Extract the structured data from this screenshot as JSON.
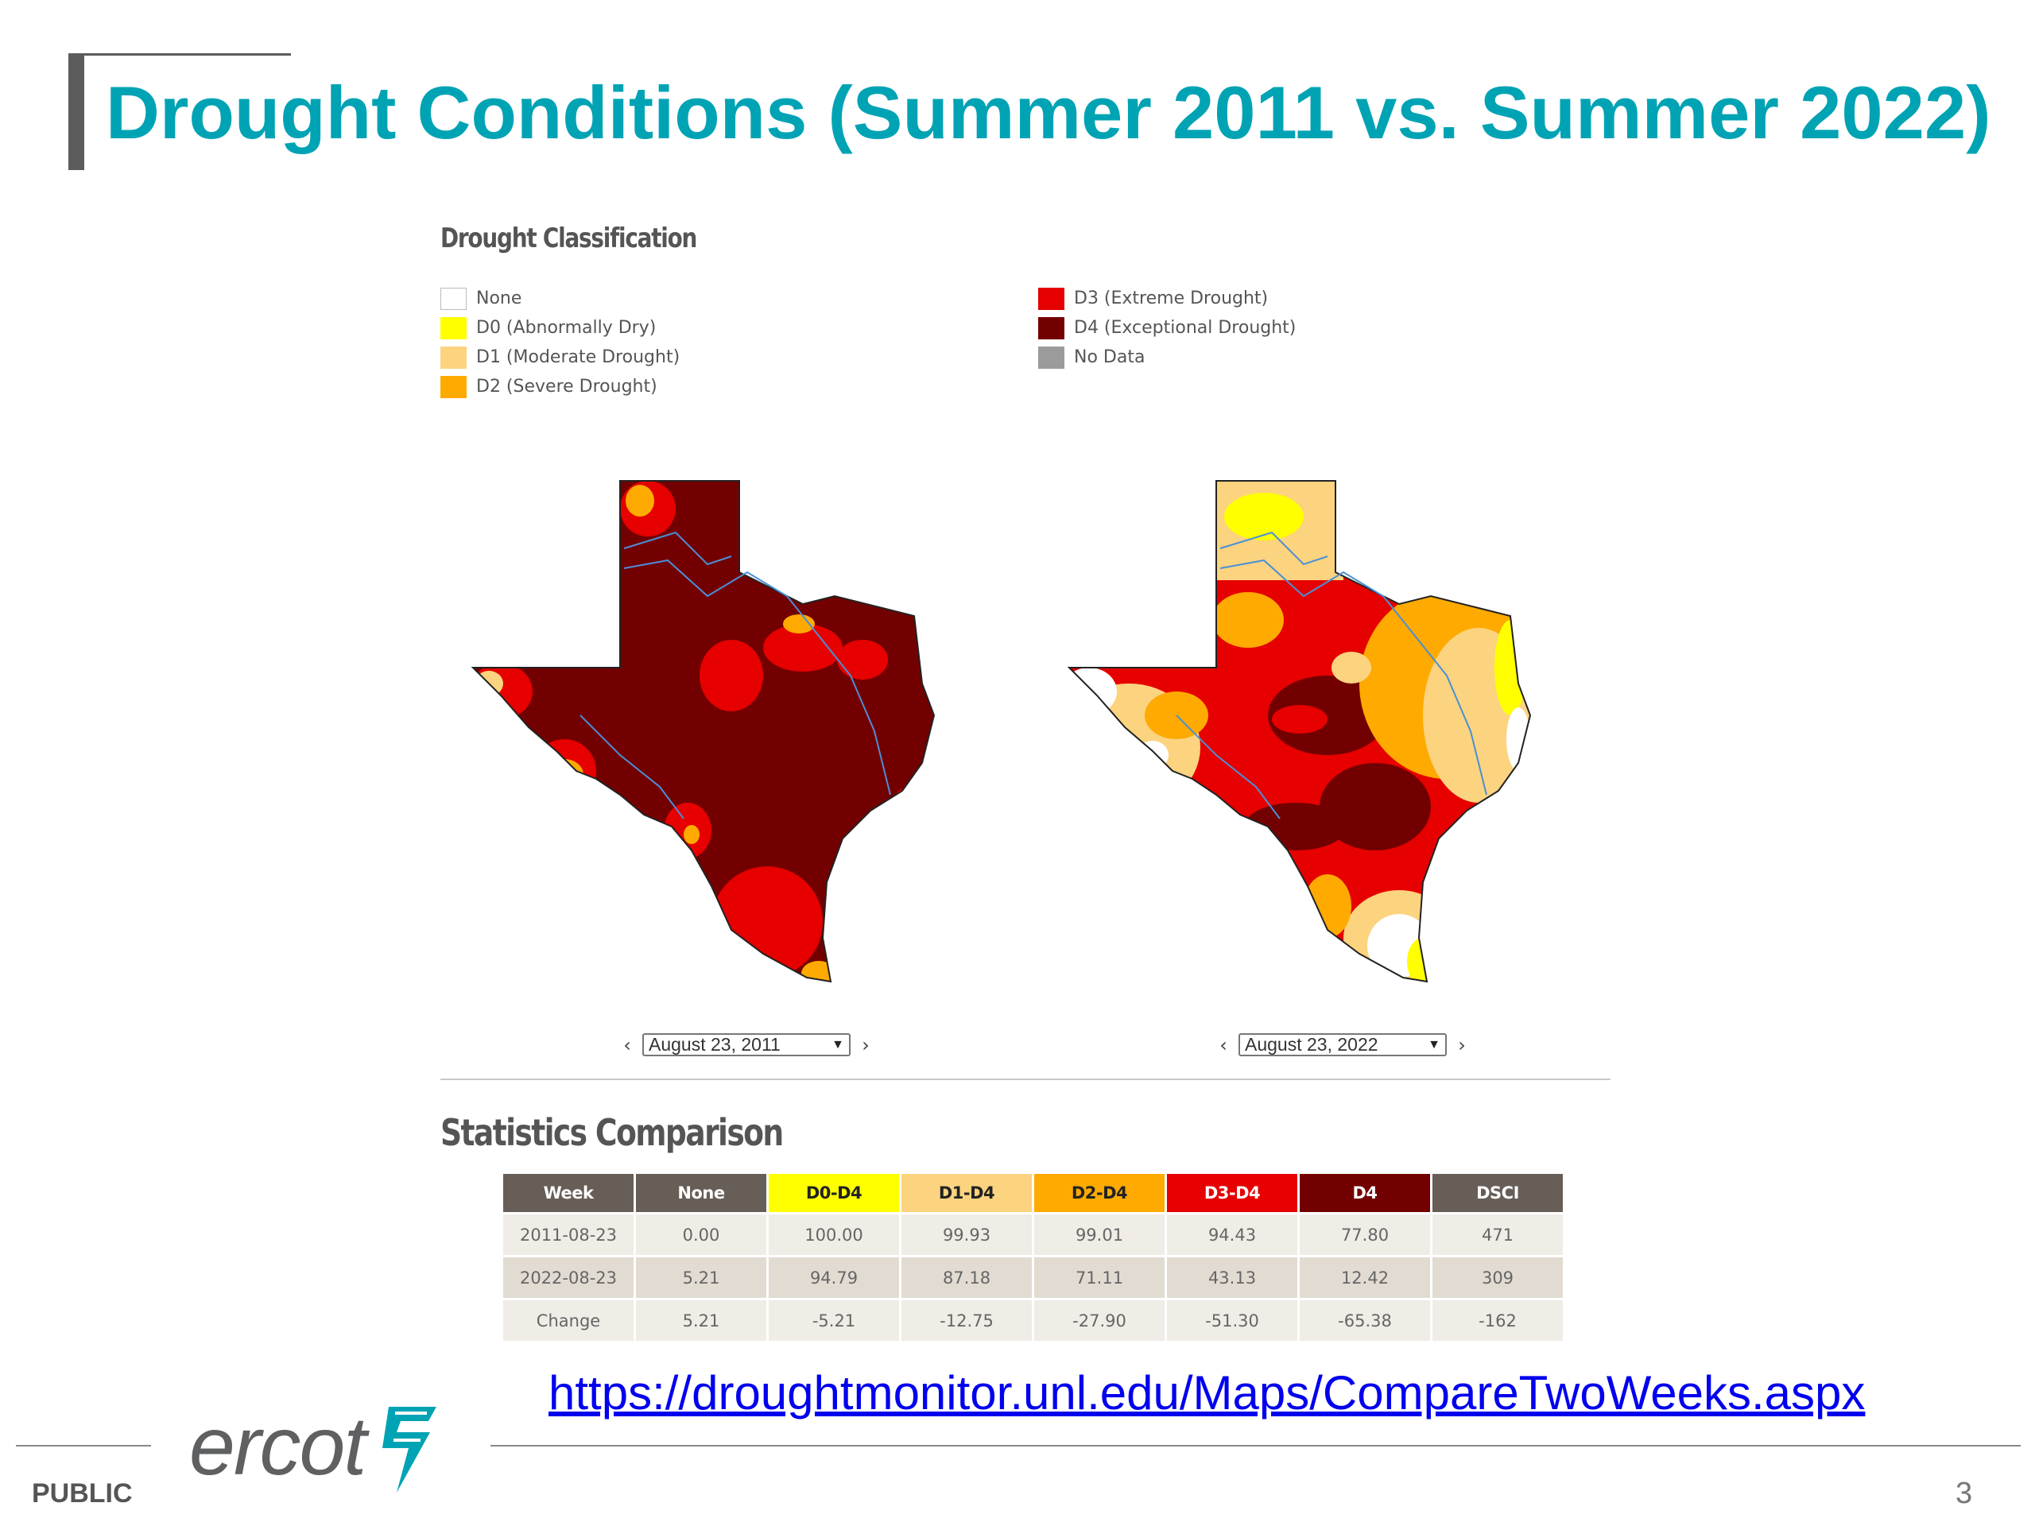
{
  "slide": {
    "title": "Drought Conditions (Summer 2011 vs. Summer 2022)",
    "page_number": "3",
    "footer_label": "PUBLIC",
    "logo_text": "ercot",
    "source_link": "https://droughtmonitor.unl.edu/Maps/CompareTwoWeeks.aspx"
  },
  "legend": {
    "title": "Drought Classification",
    "items": [
      {
        "label": "None",
        "color": "#ffffff"
      },
      {
        "label": "D0 (Abnormally Dry)",
        "color": "#ffff00"
      },
      {
        "label": "D1 (Moderate Drought)",
        "color": "#fcd37f"
      },
      {
        "label": "D2 (Severe Drought)",
        "color": "#ffaa00"
      },
      {
        "label": "D3 (Extreme Drought)",
        "color": "#e60000"
      },
      {
        "label": "D4 (Exceptional Drought)",
        "color": "#730000"
      },
      {
        "label": "No Data",
        "color": "#9b9b9b"
      }
    ]
  },
  "maps": {
    "left": {
      "date": "August 23, 2011",
      "dominant_color": "#730000",
      "icon": "texas-drought-map-2011"
    },
    "right": {
      "date": "August 23, 2022",
      "dominant_color": "#e60000",
      "icon": "texas-drought-map-2022"
    }
  },
  "stats": {
    "title": "Statistics Comparison",
    "headers": [
      {
        "label": "Week",
        "bg": "#675e57",
        "fg": "#ffffff"
      },
      {
        "label": "None",
        "bg": "#675e57",
        "fg": "#ffffff"
      },
      {
        "label": "D0-D4",
        "bg": "#ffff00",
        "fg": "#222222"
      },
      {
        "label": "D1-D4",
        "bg": "#fcd37f",
        "fg": "#222222"
      },
      {
        "label": "D2-D4",
        "bg": "#ffaa00",
        "fg": "#222222"
      },
      {
        "label": "D3-D4",
        "bg": "#e60000",
        "fg": "#ffffff"
      },
      {
        "label": "D4",
        "bg": "#730000",
        "fg": "#ffffff"
      },
      {
        "label": "DSCI",
        "bg": "#675e57",
        "fg": "#ffffff"
      }
    ],
    "rows": [
      [
        "2011-08-23",
        "0.00",
        "100.00",
        "99.93",
        "99.01",
        "94.43",
        "77.80",
        "471"
      ],
      [
        "2022-08-23",
        "5.21",
        "94.79",
        "87.18",
        "71.11",
        "43.13",
        "12.42",
        "309"
      ],
      [
        "Change",
        "5.21",
        "-5.21",
        "-12.75",
        "-27.90",
        "-51.30",
        "-65.38",
        "-162"
      ]
    ]
  }
}
